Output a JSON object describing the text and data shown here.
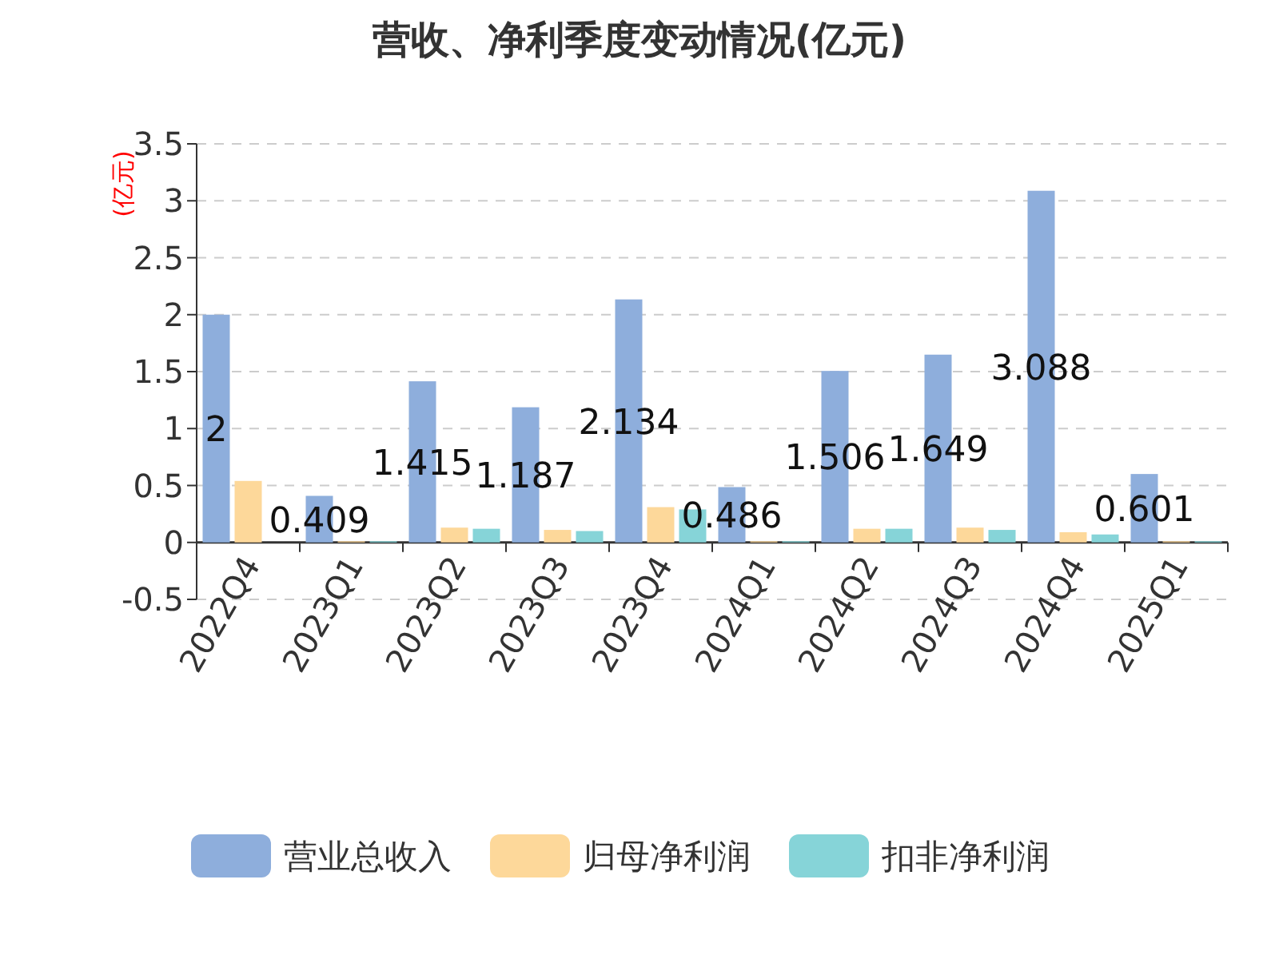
{
  "chart_data": {
    "type": "bar",
    "title": "营收、净利季度变动情况(亿元)",
    "ylabel": "(亿元)",
    "categories": [
      "2022Q4",
      "2023Q1",
      "2023Q2",
      "2023Q3",
      "2023Q4",
      "2024Q1",
      "2024Q2",
      "2024Q3",
      "2024Q4",
      "2025Q1"
    ],
    "series": [
      {
        "name": "营业总收入",
        "color": "#8eaedc",
        "values": [
          2,
          0.409,
          1.415,
          1.187,
          2.134,
          0.486,
          1.506,
          1.649,
          3.088,
          0.601
        ],
        "value_labels": [
          "2",
          "0.409",
          "1.415",
          "1.187",
          "2.134",
          "0.486",
          "1.506",
          "1.649",
          "3.088",
          "0.601"
        ]
      },
      {
        "name": "归母净利润",
        "color": "#fdd89a",
        "values": [
          0.54,
          0.01,
          0.13,
          0.11,
          0.31,
          0.01,
          0.12,
          0.13,
          0.09,
          0.01
        ]
      },
      {
        "name": "扣非净利润",
        "color": "#86d4d8",
        "values": [
          0.0,
          0.01,
          0.12,
          0.1,
          0.29,
          0.01,
          0.12,
          0.11,
          0.07,
          0.01
        ]
      }
    ],
    "ylim": [
      -0.5,
      3.5
    ],
    "yticks": [
      -0.5,
      0,
      0.5,
      1,
      1.5,
      2,
      2.5,
      3,
      3.5
    ],
    "grid": "y",
    "legend": "bottom"
  }
}
